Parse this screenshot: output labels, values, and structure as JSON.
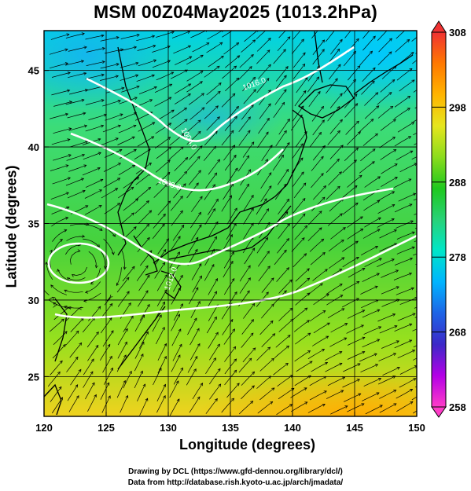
{
  "title": "MSM 00Z04May2025 (1013.2hPa)",
  "xaxis": {
    "label": "Longitude (degrees)",
    "range": [
      120,
      150
    ],
    "ticks": [
      "120",
      "125",
      "130",
      "135",
      "140",
      "145",
      "150"
    ]
  },
  "yaxis": {
    "label": "Latitude  (degrees)",
    "range": [
      22.4,
      47.6
    ],
    "ticks": [
      "25",
      "30",
      "35",
      "40",
      "45"
    ]
  },
  "colorbar": {
    "min": 258,
    "max": 308,
    "ticks": [
      "258",
      "268",
      "278",
      "288",
      "298",
      "308"
    ],
    "colors": [
      "#ff3cc8",
      "#b400e6",
      "#3c28c8",
      "#1e64e6",
      "#00b4ff",
      "#00e6c8",
      "#28d278",
      "#1ec81e",
      "#8cdc1e",
      "#e6e61e",
      "#ffb400",
      "#ff7800",
      "#f03232"
    ]
  },
  "contours": [
    {
      "label": "1004.0"
    },
    {
      "label": "1008.0"
    },
    {
      "label": "1012.0"
    },
    {
      "label": "1016.0"
    }
  ],
  "credits": {
    "line1": "Drawing by DCL (https://www.gfd-dennou.org/library/dcl/)",
    "line2": "Data from http://database.rish.kyoto-u.ac.jp/arch/jmadata/"
  }
}
